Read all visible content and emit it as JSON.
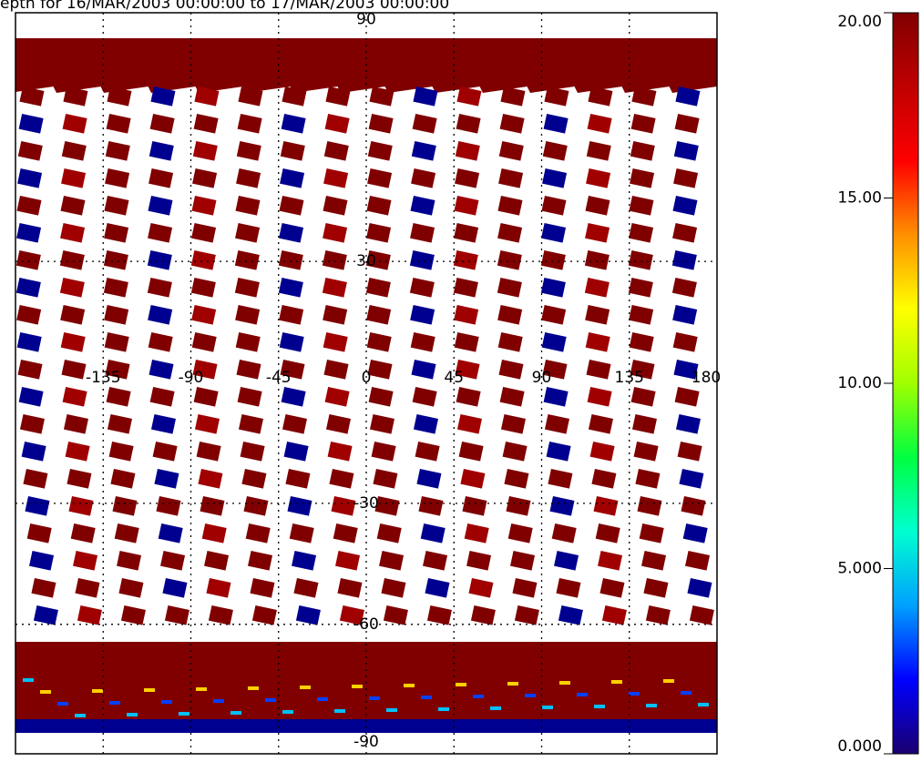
{
  "map": {
    "title": "epth for  16/MAR/2003  00:00:00  to  17/MAR/2003  00:00:00",
    "lat_labels": [
      90,
      30,
      -30,
      -60,
      -90
    ],
    "lon_labels": [
      -135,
      -90,
      -45,
      0,
      45,
      90,
      135,
      180
    ]
  },
  "colorbar": {
    "ticks": [
      {
        "value": 20,
        "label": "20.00"
      },
      {
        "value": 15,
        "label": "15.00"
      },
      {
        "value": 10,
        "label": "10.00"
      },
      {
        "value": 5,
        "label": "5.000"
      },
      {
        "value": 0,
        "label": "0.000"
      }
    ],
    "range": [
      0,
      20
    ],
    "colormap": [
      "#1a0070",
      "#0000ff",
      "#00a0ff",
      "#00ffd0",
      "#00ff40",
      "#a0ff00",
      "#ffff00",
      "#ff9000",
      "#ff0000",
      "#c00000",
      "#800000"
    ]
  }
}
